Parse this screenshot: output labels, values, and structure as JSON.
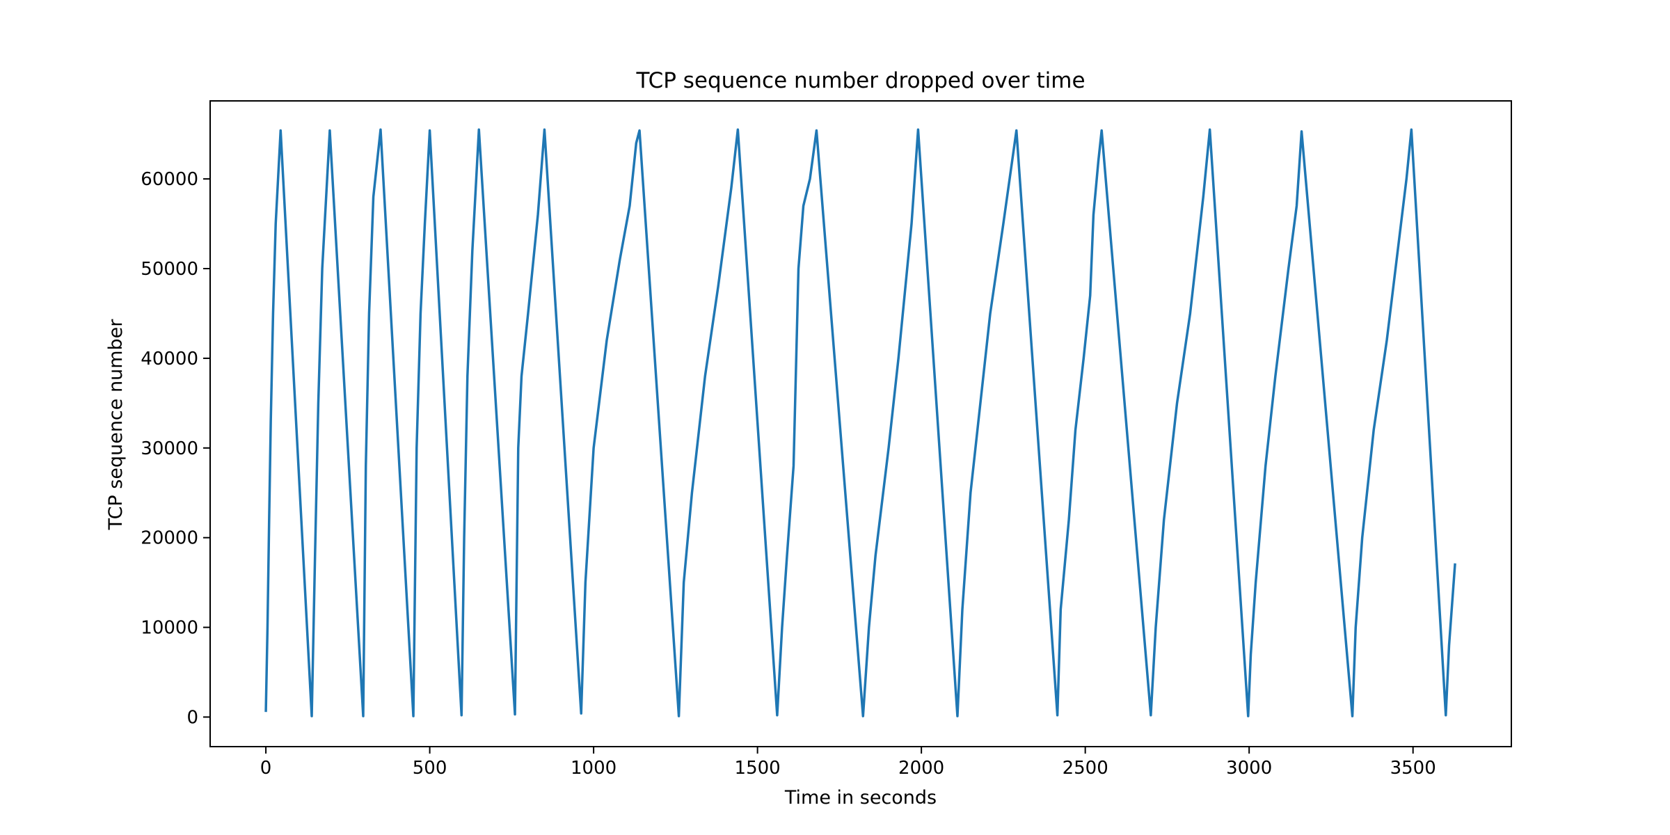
{
  "chart_data": {
    "type": "line",
    "title": "TCP sequence number dropped over time",
    "xlabel": "Time in seconds",
    "ylabel": "TCP sequence number",
    "xlim": [
      -170,
      3800
    ],
    "ylim": [
      -3300,
      68700
    ],
    "xticks": [
      0,
      500,
      1000,
      1500,
      2000,
      2500,
      3000,
      3500
    ],
    "yticks": [
      0,
      10000,
      20000,
      30000,
      40000,
      50000,
      60000
    ],
    "grid": false,
    "legend": "none",
    "series": [
      {
        "color": "#1f77b4",
        "points": [
          [
            0,
            700
          ],
          [
            5,
            10000
          ],
          [
            10,
            22000
          ],
          [
            15,
            33000
          ],
          [
            22,
            45000
          ],
          [
            30,
            55000
          ],
          [
            45,
            65400
          ],
          [
            140,
            100
          ],
          [
            150,
            18000
          ],
          [
            160,
            35000
          ],
          [
            172,
            50000
          ],
          [
            195,
            65400
          ],
          [
            297,
            100
          ],
          [
            305,
            28000
          ],
          [
            315,
            45000
          ],
          [
            328,
            58000
          ],
          [
            350,
            65500
          ],
          [
            450,
            100
          ],
          [
            460,
            30000
          ],
          [
            472,
            45000
          ],
          [
            485,
            55000
          ],
          [
            500,
            65400
          ],
          [
            597,
            200
          ],
          [
            605,
            20000
          ],
          [
            615,
            38000
          ],
          [
            630,
            52000
          ],
          [
            650,
            65500
          ],
          [
            760,
            300
          ],
          [
            770,
            30000
          ],
          [
            780,
            38000
          ],
          [
            800,
            45000
          ],
          [
            830,
            56000
          ],
          [
            850,
            65500
          ],
          [
            962,
            400
          ],
          [
            975,
            15000
          ],
          [
            1000,
            30000
          ],
          [
            1040,
            42000
          ],
          [
            1080,
            51000
          ],
          [
            1110,
            57000
          ],
          [
            1130,
            64000
          ],
          [
            1140,
            65400
          ],
          [
            1260,
            100
          ],
          [
            1275,
            15000
          ],
          [
            1300,
            25000
          ],
          [
            1340,
            38000
          ],
          [
            1380,
            48000
          ],
          [
            1420,
            59000
          ],
          [
            1440,
            65500
          ],
          [
            1560,
            200
          ],
          [
            1575,
            10000
          ],
          [
            1590,
            18000
          ],
          [
            1610,
            28000
          ],
          [
            1625,
            50000
          ],
          [
            1640,
            57000
          ],
          [
            1660,
            60000
          ],
          [
            1680,
            65400
          ],
          [
            1822,
            100
          ],
          [
            1840,
            10000
          ],
          [
            1860,
            18000
          ],
          [
            1900,
            30000
          ],
          [
            1930,
            40000
          ],
          [
            1970,
            55000
          ],
          [
            1990,
            65500
          ],
          [
            2110,
            100
          ],
          [
            2125,
            12000
          ],
          [
            2150,
            25000
          ],
          [
            2180,
            35000
          ],
          [
            2210,
            45000
          ],
          [
            2250,
            55000
          ],
          [
            2290,
            65400
          ],
          [
            2415,
            200
          ],
          [
            2425,
            12000
          ],
          [
            2450,
            22000
          ],
          [
            2470,
            32000
          ],
          [
            2495,
            40000
          ],
          [
            2515,
            47000
          ],
          [
            2525,
            56000
          ],
          [
            2540,
            62000
          ],
          [
            2550,
            65400
          ],
          [
            2700,
            200
          ],
          [
            2715,
            10000
          ],
          [
            2740,
            22000
          ],
          [
            2780,
            35000
          ],
          [
            2820,
            45000
          ],
          [
            2860,
            58000
          ],
          [
            2880,
            65500
          ],
          [
            2997,
            100
          ],
          [
            3005,
            7000
          ],
          [
            3020,
            15000
          ],
          [
            3050,
            28000
          ],
          [
            3080,
            38000
          ],
          [
            3120,
            50000
          ],
          [
            3145,
            57000
          ],
          [
            3160,
            65300
          ],
          [
            3315,
            100
          ],
          [
            3325,
            10000
          ],
          [
            3345,
            20000
          ],
          [
            3380,
            32000
          ],
          [
            3420,
            42000
          ],
          [
            3460,
            54000
          ],
          [
            3480,
            60000
          ],
          [
            3495,
            65500
          ],
          [
            3600,
            200
          ],
          [
            3610,
            8000
          ],
          [
            3620,
            13000
          ],
          [
            3628,
            17000
          ]
        ]
      }
    ]
  }
}
